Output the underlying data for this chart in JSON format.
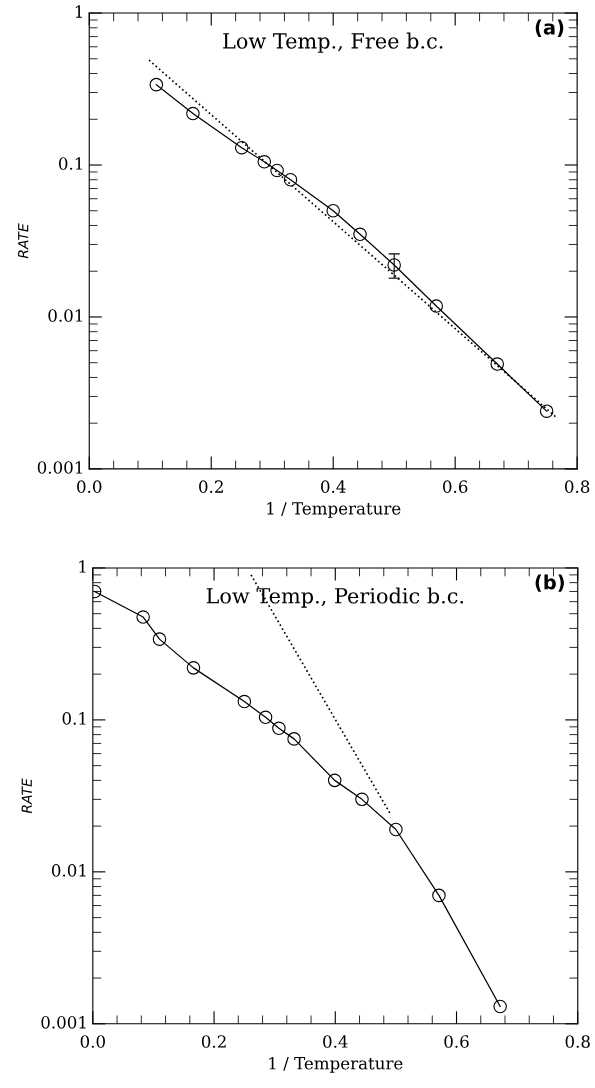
{
  "chart_data": [
    {
      "type": "line",
      "xlabel": "1 / Temperature",
      "ylabel": "RATE",
      "log": "y",
      "xlim": [
        0,
        0.8
      ],
      "xticks": [
        {
          "value": 0,
          "label": "0.0"
        },
        {
          "value": 0.2,
          "label": "0.2"
        },
        {
          "value": 0.4,
          "label": "0.4"
        },
        {
          "value": 0.6,
          "label": "0.6"
        },
        {
          "value": 0.8,
          "label": "0.8"
        }
      ],
      "ylim": [
        0.001,
        1
      ],
      "yticks": [
        0.001,
        0.01,
        0.1,
        1
      ],
      "annotations": [
        "Low Temp., Free b.c.",
        "(a)"
      ],
      "series": [
        {
          "color": "#000000",
          "marker": "circle",
          "line_style": "solid",
          "x": [
            0.11,
            0.17,
            0.25,
            0.287,
            0.308,
            0.33,
            0.4,
            0.444,
            0.5,
            0.569,
            0.669,
            0.75
          ],
          "values": [
            0.338,
            0.218,
            0.13,
            0.105,
            0.092,
            0.08,
            0.05,
            0.035,
            0.022,
            0.0118,
            0.0049,
            0.0024
          ],
          "errors": [
            null,
            null,
            null,
            null,
            null,
            null,
            null,
            null,
            [
              0.018,
              0.026
            ],
            null,
            null,
            null
          ]
        },
        {
          "color": "#000000",
          "marker": "none",
          "line_style": "dotted",
          "x": [
            0.098,
            0.765
          ],
          "values": [
            0.49,
            0.0022
          ]
        }
      ]
    },
    {
      "type": "line",
      "xlabel": "1 / Temperature",
      "ylabel": "RATE",
      "log": "y",
      "xlim": [
        0,
        0.8
      ],
      "xticks": [
        {
          "value": 0,
          "label": "0.0"
        },
        {
          "value": 0.2,
          "label": "0.2"
        },
        {
          "value": 0.4,
          "label": "0.4"
        },
        {
          "value": 0.6,
          "label": "0.6"
        },
        {
          "value": 0.8,
          "label": "0.8"
        }
      ],
      "ylim": [
        0.001,
        1
      ],
      "yticks": [
        0.001,
        0.01,
        0.1,
        1
      ],
      "annotations": [
        "Low Temp., Periodic b.c.",
        "(b)"
      ],
      "series": [
        {
          "color": "#000000",
          "marker": "circle",
          "line_style": "solid",
          "x": [
            0.003,
            0.083,
            0.11,
            0.166,
            0.25,
            0.285,
            0.307,
            0.332,
            0.399,
            0.444,
            0.5,
            0.571,
            0.672
          ],
          "values": [
            0.7,
            0.475,
            0.34,
            0.22,
            0.132,
            0.104,
            0.088,
            0.075,
            0.04,
            0.03,
            0.019,
            0.007,
            0.0013
          ]
        },
        {
          "color": "#000000",
          "marker": "none",
          "line_style": "dotted",
          "x": [
            0.261,
            0.491
          ],
          "values": [
            0.9,
            0.024
          ]
        }
      ]
    }
  ]
}
